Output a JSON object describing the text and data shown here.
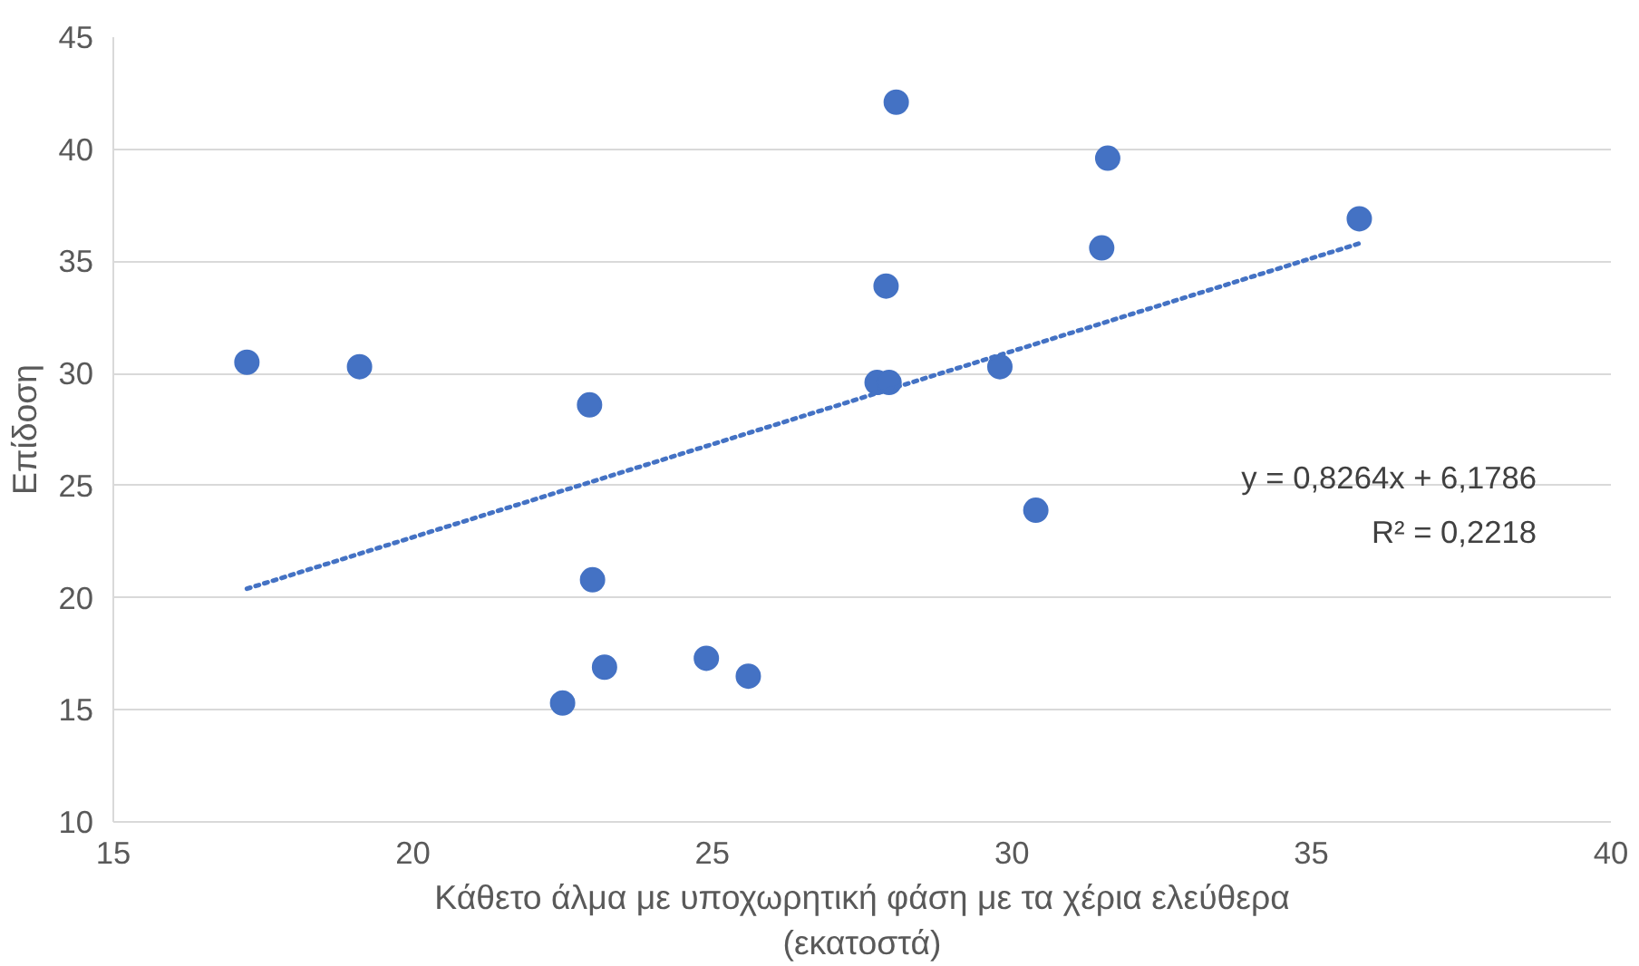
{
  "chart_data": {
    "type": "scatter",
    "xlabel": "Κάθετο άλμα με υποχωρητική φάση με τα χέρια ελεύθερα\n(εκατοστά)",
    "ylabel": "Επίδοση",
    "xlim": [
      15,
      40
    ],
    "xticks": [
      15,
      20,
      25,
      30,
      35,
      40
    ],
    "ylim": [
      10,
      45
    ],
    "yticks": [
      10,
      15,
      20,
      25,
      30,
      35,
      40,
      45
    ],
    "grid": "y",
    "marker": "circle",
    "annotations": [
      "y = 0,8264x + 6,1786",
      "R² = 0,2218"
    ],
    "series": [
      {
        "color": "#4472c4",
        "x": [
          17.23,
          19.11,
          22.95,
          23.0,
          22.5,
          23.2,
          24.9,
          25.6,
          28.07,
          27.9,
          27.75,
          27.95,
          29.8,
          30.4,
          31.5,
          31.6,
          35.8
        ],
        "values": [
          30.5,
          30.3,
          28.6,
          20.8,
          15.3,
          16.9,
          17.3,
          16.5,
          42.1,
          33.9,
          29.6,
          29.6,
          30.3,
          23.9,
          35.6,
          39.6,
          36.9
        ]
      },
      {
        "type": "line",
        "color": "#4472c4",
        "line_style": "dotted",
        "marker": "none",
        "x": [
          17.23,
          35.8
        ],
        "values": [
          20.4,
          35.8
        ]
      }
    ]
  }
}
